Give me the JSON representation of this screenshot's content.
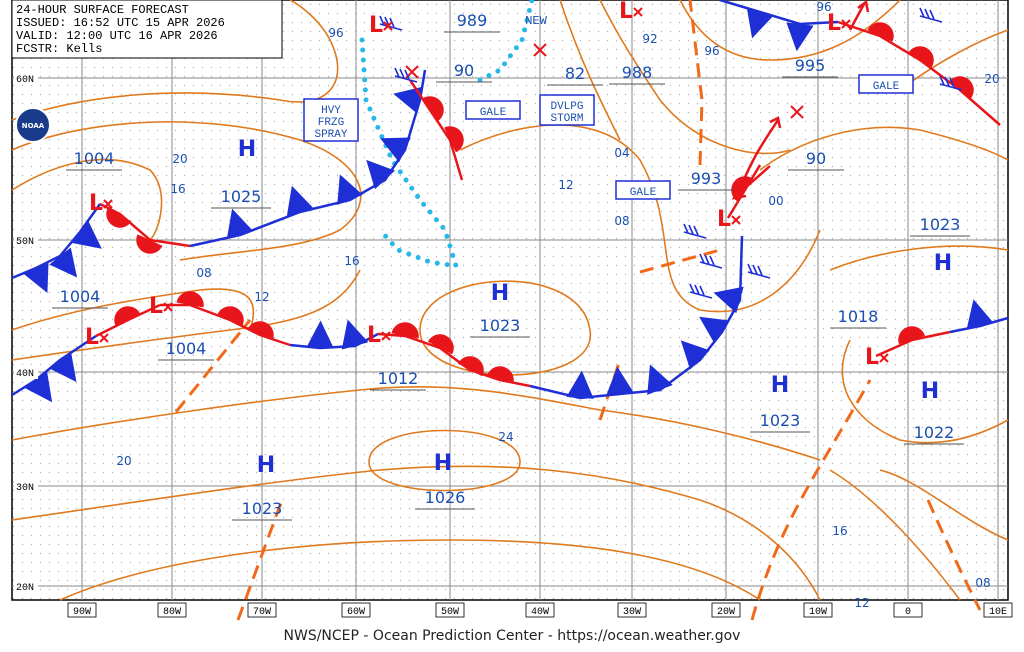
{
  "map": {
    "header": [
      "24-HOUR SURFACE FORECAST",
      "ISSUED: 16:52 UTC 15 APR 2026",
      "VALID:  12:00 UTC 16 APR 2026",
      "FCSTR:  Kells"
    ],
    "footer": "NWS/NCEP - Ocean Prediction Center - https://ocean.weather.gov",
    "logo": "NOAA",
    "latitude_labels": [
      "60N",
      "50N",
      "40N",
      "30N",
      "20N"
    ],
    "longitude_labels": [
      "90W",
      "80W",
      "70W",
      "60W",
      "50W",
      "40W",
      "30W",
      "20W",
      "10W",
      "0",
      "10E"
    ],
    "highs": [
      {
        "symbol": "H",
        "pressure": "1025"
      },
      {
        "symbol": "H",
        "pressure": "1023"
      },
      {
        "symbol": "H",
        "pressure": "1026"
      },
      {
        "symbol": "H",
        "pressure": "1023"
      },
      {
        "symbol": "H",
        "pressure": "1023"
      },
      {
        "symbol": "H",
        "pressure": "1023"
      },
      {
        "symbol": "H",
        "pressure": "1022"
      }
    ],
    "lows": [
      "L",
      "L",
      "L",
      "L",
      "L",
      "L",
      "L",
      "L",
      "L"
    ],
    "pressure_labels": [
      "1004",
      "1004",
      "1004",
      "1012",
      "1018",
      "989",
      "90",
      "82",
      "988",
      "995",
      "993",
      "90"
    ],
    "isobar_labels": [
      "96",
      "20",
      "16",
      "08",
      "12",
      "16",
      "04",
      "12",
      "08",
      "00",
      "92",
      "96",
      "96",
      "20",
      "24",
      "20",
      "16",
      "12",
      "08"
    ],
    "warning_boxes": [
      [
        "HVY",
        "FRZG",
        "SPRAY"
      ],
      [
        "GALE"
      ],
      [
        "DVLPG",
        "STORM"
      ],
      [
        "GALE"
      ],
      [
        "GALE"
      ]
    ],
    "new_label": "NEW"
  }
}
